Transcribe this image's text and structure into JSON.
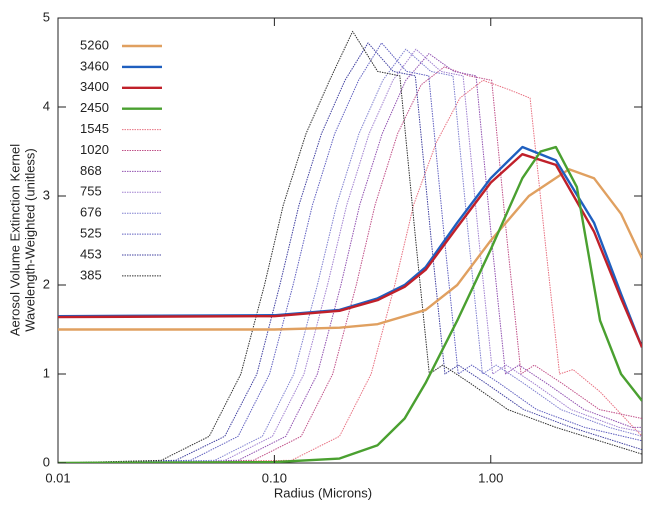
{
  "chart_data": {
    "type": "line",
    "xlabel": "Radius (Microns)",
    "ylabel": [
      "Aerosol Volume Extinction Kernel",
      "Wavelength-Weighted (unitless)"
    ],
    "xlog": true,
    "xlim": [
      0.01,
      5
    ],
    "ylim": [
      0,
      5
    ],
    "xticks": [
      {
        "value": 0.01,
        "label": "0.01"
      },
      {
        "value": 0.1,
        "label": "0.10"
      },
      {
        "value": 1,
        "label": "1.00"
      }
    ],
    "yticks": [
      0,
      1,
      2,
      3,
      4,
      5
    ],
    "grid": false,
    "legend": "upper left",
    "series": [
      {
        "name": "5260",
        "color": "#e0a060",
        "style": "solid",
        "x": [
          0.01,
          0.1,
          0.2,
          0.3,
          0.5,
          0.7,
          1.0,
          1.5,
          2.3,
          3.0,
          4.0,
          5.0
        ],
        "values": [
          1.5,
          1.5,
          1.52,
          1.56,
          1.72,
          2.0,
          2.5,
          3.0,
          3.3,
          3.2,
          2.8,
          2.3
        ]
      },
      {
        "name": "3460",
        "color": "#1f5fbf",
        "style": "solid",
        "x": [
          0.01,
          0.1,
          0.2,
          0.3,
          0.4,
          0.5,
          0.7,
          1.0,
          1.4,
          2.0,
          3.0,
          4.0,
          5.0
        ],
        "values": [
          1.65,
          1.66,
          1.72,
          1.85,
          2.0,
          2.2,
          2.7,
          3.2,
          3.55,
          3.4,
          2.7,
          1.9,
          1.3
        ]
      },
      {
        "name": "3400",
        "color": "#c0202a",
        "style": "solid",
        "x": [
          0.01,
          0.1,
          0.2,
          0.3,
          0.4,
          0.5,
          0.7,
          1.0,
          1.4,
          2.0,
          3.0,
          4.0,
          5.0
        ],
        "values": [
          1.64,
          1.65,
          1.71,
          1.83,
          1.98,
          2.17,
          2.65,
          3.15,
          3.47,
          3.35,
          2.6,
          1.85,
          1.3
        ]
      },
      {
        "name": "2450",
        "color": "#4aa030",
        "style": "solid",
        "x": [
          0.01,
          0.1,
          0.2,
          0.3,
          0.4,
          0.5,
          0.7,
          1.0,
          1.4,
          1.7,
          2.0,
          2.5,
          3.2,
          4.0,
          5.0
        ],
        "values": [
          0,
          0.01,
          0.05,
          0.2,
          0.5,
          0.9,
          1.6,
          2.4,
          3.2,
          3.5,
          3.55,
          3.1,
          1.6,
          1.0,
          0.7
        ]
      },
      {
        "name": "1545",
        "color": "#e87080",
        "style": "dotted",
        "x": [
          0.01,
          0.12,
          0.2,
          0.28,
          0.36,
          0.44,
          0.56,
          0.72,
          0.92,
          1.2,
          1.52,
          1.8,
          2.08,
          2.4,
          3.2,
          5.0
        ],
        "values": [
          0,
          0.03,
          0.3,
          1.0,
          2.0,
          2.9,
          3.6,
          4.1,
          4.3,
          4.2,
          4.1,
          2.4,
          1.0,
          1.05,
          0.8,
          0.3
        ]
      },
      {
        "name": "1020",
        "color": "#c05088",
        "style": "dotted",
        "x": [
          0.01,
          0.08,
          0.133,
          0.186,
          0.239,
          0.292,
          0.371,
          0.477,
          0.61,
          0.795,
          1.01,
          1.19,
          1.38,
          1.59,
          2.12,
          3.18,
          5.0
        ],
        "values": [
          0,
          0.03,
          0.3,
          1.0,
          2.0,
          2.9,
          3.7,
          4.25,
          4.45,
          4.35,
          4.3,
          2.5,
          1.0,
          1.1,
          0.9,
          0.6,
          0.5
        ]
      },
      {
        "name": "868",
        "color": "#9050b0",
        "style": "dotted",
        "x": [
          0.01,
          0.068,
          0.113,
          0.158,
          0.203,
          0.248,
          0.315,
          0.405,
          0.518,
          0.675,
          0.855,
          1.01,
          1.17,
          1.35,
          1.8,
          2.7,
          4.5,
          5.0
        ],
        "values": [
          0,
          0.03,
          0.3,
          1.0,
          2.0,
          2.9,
          3.7,
          4.3,
          4.6,
          4.4,
          4.35,
          2.5,
          1.0,
          1.1,
          0.9,
          0.6,
          0.4,
          0.4
        ]
      },
      {
        "name": "755",
        "color": "#a080d0",
        "style": "dotted",
        "x": [
          0.01,
          0.059,
          0.098,
          0.137,
          0.176,
          0.216,
          0.274,
          0.353,
          0.451,
          0.588,
          0.745,
          0.882,
          1.02,
          1.18,
          1.57,
          2.35,
          3.92,
          5.0
        ],
        "values": [
          0,
          0.03,
          0.3,
          1.0,
          2.0,
          2.9,
          3.7,
          4.3,
          4.65,
          4.4,
          4.35,
          2.5,
          1.0,
          1.1,
          0.9,
          0.6,
          0.4,
          0.35
        ]
      },
      {
        "name": "676",
        "color": "#8080d0",
        "style": "dotted",
        "x": [
          0.01,
          0.053,
          0.088,
          0.123,
          0.158,
          0.194,
          0.246,
          0.317,
          0.405,
          0.528,
          0.669,
          0.792,
          0.915,
          1.06,
          1.41,
          2.11,
          3.52,
          5.0
        ],
        "values": [
          0,
          0.03,
          0.3,
          1.0,
          2.0,
          2.9,
          3.7,
          4.3,
          4.65,
          4.4,
          4.35,
          2.5,
          1.0,
          1.1,
          0.9,
          0.6,
          0.4,
          0.3
        ]
      },
      {
        "name": "525",
        "color": "#6060c0",
        "style": "dotted",
        "x": [
          0.01,
          0.041,
          0.068,
          0.095,
          0.122,
          0.15,
          0.19,
          0.245,
          0.313,
          0.408,
          0.517,
          0.612,
          0.707,
          0.816,
          1.09,
          1.63,
          2.72,
          5.0
        ],
        "values": [
          0,
          0.03,
          0.3,
          1.0,
          2.0,
          2.9,
          3.7,
          4.3,
          4.72,
          4.4,
          4.35,
          2.5,
          1.0,
          1.1,
          0.9,
          0.6,
          0.4,
          0.25
        ]
      },
      {
        "name": "453",
        "color": "#4040a0",
        "style": "dotted",
        "x": [
          0.01,
          0.035,
          0.059,
          0.083,
          0.106,
          0.13,
          0.165,
          0.212,
          0.271,
          0.354,
          0.448,
          0.531,
          0.614,
          0.708,
          0.944,
          1.42,
          2.36,
          5.0
        ],
        "values": [
          0,
          0.03,
          0.3,
          1.0,
          2.0,
          2.9,
          3.7,
          4.3,
          4.72,
          4.4,
          4.35,
          2.5,
          1.0,
          1.1,
          0.9,
          0.6,
          0.4,
          0.15
        ]
      },
      {
        "name": "385",
        "color": "#303030",
        "style": "dotted",
        "x": [
          0.01,
          0.03,
          0.05,
          0.07,
          0.09,
          0.11,
          0.14,
          0.18,
          0.23,
          0.3,
          0.38,
          0.45,
          0.52,
          0.6,
          0.8,
          1.2,
          2.0,
          5.0
        ],
        "values": [
          0,
          0.03,
          0.3,
          1.0,
          2.0,
          2.9,
          3.7,
          4.3,
          4.85,
          4.4,
          4.35,
          2.5,
          1.0,
          1.1,
          0.9,
          0.6,
          0.4,
          0.1
        ]
      }
    ]
  }
}
